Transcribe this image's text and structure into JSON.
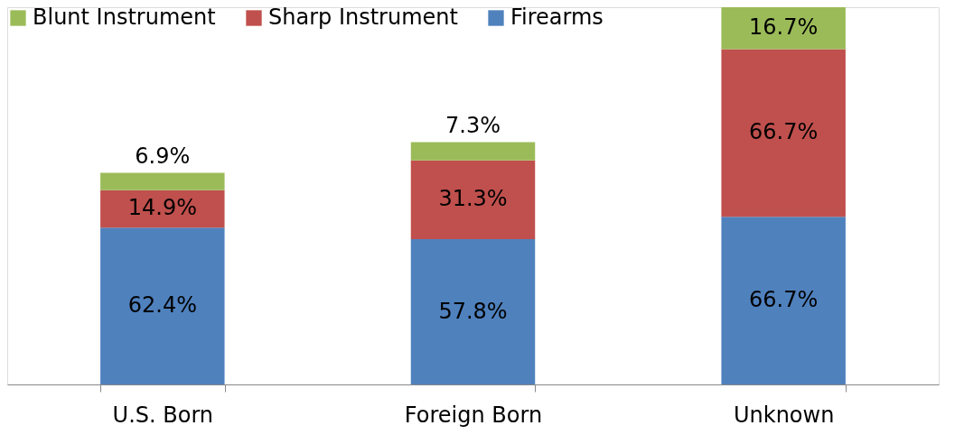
{
  "chart_data": {
    "type": "bar",
    "stacked": true,
    "data_labels": true,
    "legend": "top left",
    "grid": false,
    "categories": [
      "U.S. Born",
      "Foreign Born",
      "Unknown"
    ],
    "series": [
      {
        "name": "Firearms",
        "color": "#4f81bd",
        "values": [
          62.4,
          57.8,
          66.7
        ],
        "value_labels": [
          "62.4%",
          "57.8%",
          "66.7%"
        ]
      },
      {
        "name": "Sharp Instrument",
        "color": "#c0504d",
        "values": [
          14.9,
          31.3,
          66.7
        ],
        "value_labels": [
          "14.9%",
          "31.3%",
          "66.7%"
        ]
      },
      {
        "name": "Blunt Instrument",
        "color": "#9bbb59",
        "values": [
          6.9,
          7.3,
          16.7
        ],
        "value_labels": [
          "6.9%",
          "7.3%",
          "16.7%"
        ]
      }
    ]
  }
}
